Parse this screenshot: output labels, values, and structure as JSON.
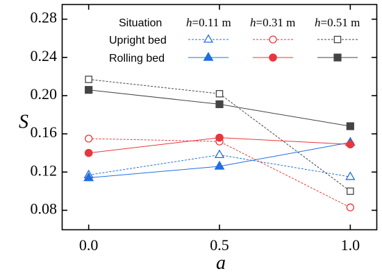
{
  "chart_data": {
    "type": "line",
    "title": "",
    "xlabel": "a",
    "ylabel": "S",
    "x": [
      0.0,
      0.5,
      1.0
    ],
    "xlim": [
      -0.1,
      1.1
    ],
    "ylim": [
      0.06,
      0.295
    ],
    "x_ticks": [
      "0.0",
      "0.5",
      "1.0"
    ],
    "y_ticks": [
      "0.08",
      "0.12",
      "0.16",
      "0.20",
      "0.24",
      "0.28"
    ],
    "grid": false,
    "legend": {
      "placement": "top-right",
      "header_label": "Situation",
      "column_prefix": "h",
      "columns": [
        "=0.11 m",
        "=0.31 m",
        "=0.51 m"
      ],
      "rows": [
        "Upright bed",
        "Rolling bed"
      ]
    },
    "series": [
      {
        "situation": "Upright bed",
        "height": "0.11 m",
        "color": "#1f6fe0",
        "marker": "triangle",
        "filled": false,
        "dashed": true,
        "values": [
          0.117,
          0.138,
          0.115
        ]
      },
      {
        "situation": "Upright bed",
        "height": "0.31 m",
        "color": "#e8363a",
        "marker": "circle",
        "filled": false,
        "dashed": true,
        "values": [
          0.155,
          0.152,
          0.083
        ]
      },
      {
        "situation": "Upright bed",
        "height": "0.51 m",
        "color": "#444444",
        "marker": "square",
        "filled": false,
        "dashed": true,
        "values": [
          0.217,
          0.202,
          0.1
        ]
      },
      {
        "situation": "Rolling bed",
        "height": "0.11 m",
        "color": "#1f6fe0",
        "marker": "triangle",
        "filled": true,
        "dashed": false,
        "values": [
          0.114,
          0.126,
          0.151
        ]
      },
      {
        "situation": "Rolling bed",
        "height": "0.31 m",
        "color": "#e8363a",
        "marker": "circle",
        "filled": true,
        "dashed": false,
        "values": [
          0.14,
          0.156,
          0.149
        ]
      },
      {
        "situation": "Rolling bed",
        "height": "0.51 m",
        "color": "#444444",
        "marker": "square",
        "filled": true,
        "dashed": false,
        "values": [
          0.206,
          0.191,
          0.168
        ]
      }
    ]
  }
}
